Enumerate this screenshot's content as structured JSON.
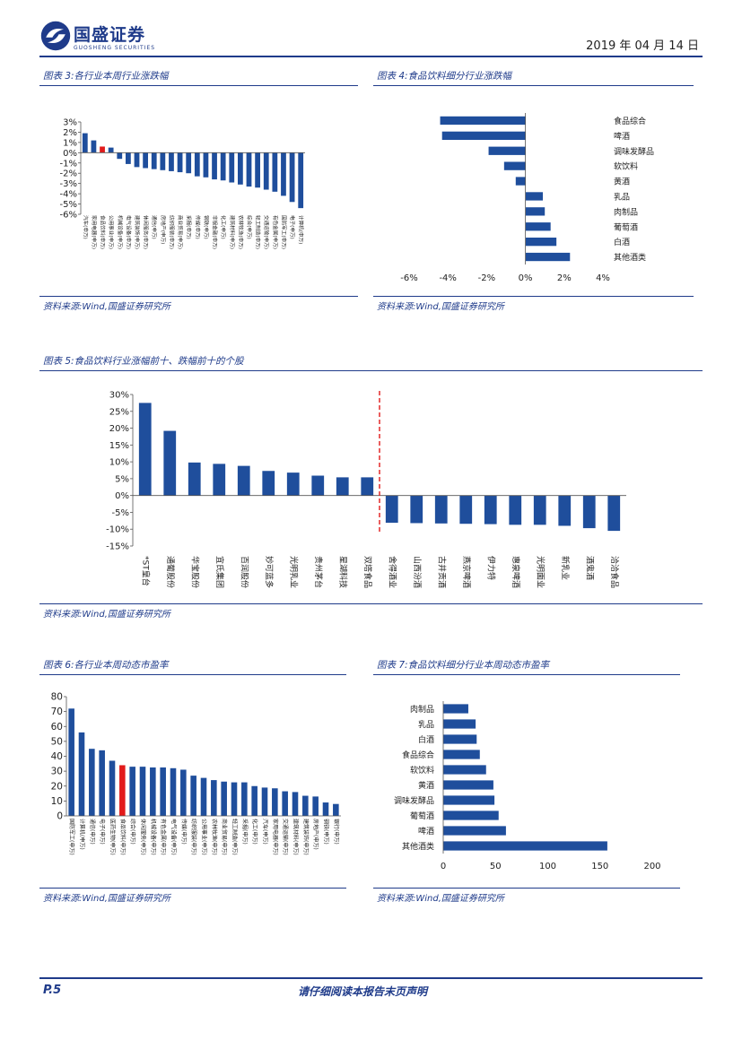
{
  "header": {
    "brand": "国盛证券",
    "brand_sub": "GUOSHENG SECURITIES",
    "date": "2019 年 04 月 14 日"
  },
  "figures": {
    "fig3": {
      "caption": "图表 3:各行业本周行业涨跌幅",
      "source": "资料来源:Wind,国盛证券研究所"
    },
    "fig4": {
      "caption": "图表 4:食品饮料细分行业涨跌幅",
      "source": "资料来源:Wind,国盛证券研究所"
    },
    "fig5": {
      "caption": "图表 5:食品饮料行业涨幅前十、跌幅前十的个股",
      "source": "资料来源:Wind,国盛证券研究所"
    },
    "fig6": {
      "caption": "图表 6:各行业本周动态市盈率",
      "source": "资料来源:Wind,国盛证券研究所"
    },
    "fig7": {
      "caption": "图表 7:食品饮料细分行业本周动态市盈率",
      "source": "资料来源:Wind,国盛证券研究所"
    }
  },
  "colors": {
    "bar": "#1f4e9c",
    "highlight": "#e21b1b",
    "brand": "#1f3b8a"
  },
  "footer": {
    "page": "P.5",
    "disclaimer": "请仔细阅读本报告末页声明"
  },
  "chart_data": [
    {
      "id": "fig3",
      "type": "bar",
      "title": "各行业本周行业涨跌幅",
      "ylim": [
        -6,
        3
      ],
      "yticks": [
        "3%",
        "2%",
        "1%",
        "0%",
        "-1%",
        "-2%",
        "-3%",
        "-4%",
        "-5%",
        "-6%"
      ],
      "ytick_values": [
        3,
        2,
        1,
        0,
        -1,
        -2,
        -3,
        -4,
        -5,
        -6
      ],
      "categories": [
        "汽车(申万)",
        "家用电器(申万)",
        "食品饮料(申万)",
        "公用事业(申万)",
        "机械设备(申万)",
        "电气设备(申万)",
        "建筑装饰(申万)",
        "休闲服务(申万)",
        "通信(申万)",
        "房地产(申万)",
        "纺织服装(申万)",
        "商业贸易(申万)",
        "采掘(申万)",
        "传媒(申万)",
        "钢铁(申万)",
        "非银金融(申万)",
        "化工(申万)",
        "建筑材料(申万)",
        "农林牧渔(申万)",
        "综合(申万)",
        "轻工制造(申万)",
        "交通运输(申万)",
        "有色金属(申万)",
        "国防军工(申万)",
        "电子(申万)",
        "计算机(申万)"
      ],
      "values": [
        1.9,
        1.2,
        0.6,
        0.5,
        -0.6,
        -1.1,
        -1.4,
        -1.5,
        -1.6,
        -1.7,
        -1.8,
        -1.9,
        -2.0,
        -2.3,
        -2.4,
        -2.6,
        -2.7,
        -2.9,
        -3.1,
        -3.3,
        -3.4,
        -3.6,
        -3.8,
        -4.2,
        -4.8,
        -5.4
      ],
      "highlight_index": 2
    },
    {
      "id": "fig4",
      "type": "bar",
      "orientation": "horizontal",
      "title": "食品饮料细分行业涨跌幅",
      "xlim": [
        -6,
        4
      ],
      "xticks": [
        "-6%",
        "-4%",
        "-2%",
        "0%",
        "2%",
        "4%"
      ],
      "xtick_values": [
        -6,
        -4,
        -2,
        0,
        2,
        4
      ],
      "categories": [
        "食品综合",
        "啤酒",
        "调味发酵品",
        "软饮料",
        "黄酒",
        "乳品",
        "肉制品",
        "葡萄酒",
        "白酒",
        "其他酒类"
      ],
      "values": [
        -4.4,
        -4.3,
        -1.9,
        -1.1,
        -0.5,
        0.9,
        1.0,
        1.3,
        1.6,
        2.3
      ]
    },
    {
      "id": "fig5",
      "type": "bar",
      "title": "食品饮料行业涨幅前十、跌幅前十的个股",
      "ylim": [
        -15,
        30
      ],
      "yticks": [
        "30%",
        "25%",
        "20%",
        "15%",
        "10%",
        "5%",
        "0%",
        "-5%",
        "-10%",
        "-15%"
      ],
      "ytick_values": [
        30,
        25,
        20,
        15,
        10,
        5,
        0,
        -5,
        -10,
        -15
      ],
      "categories": [
        "*ST皇台",
        "通葡股份",
        "华宝股份",
        "宜氏集团",
        "百润股份",
        "妙可蓝多",
        "光明乳业",
        "贵州茅台",
        "星湖科技",
        "双塔食品",
        "舍得酒业",
        "山西汾酒",
        "古井贡酒",
        "燕京啤酒",
        "伊力特",
        "惠泉啤酒",
        "光明面业",
        "新乳业",
        "酒鬼酒",
        "洽洽食品"
      ],
      "values": [
        27.5,
        19.2,
        9.8,
        9.4,
        8.8,
        7.3,
        6.8,
        5.9,
        5.4,
        5.4,
        -8.1,
        -8.2,
        -8.3,
        -8.4,
        -8.5,
        -8.7,
        -8.7,
        -9.0,
        -9.7,
        -10.5
      ]
    },
    {
      "id": "fig6",
      "type": "bar",
      "title": "各行业本周动态市盈率",
      "ylim": [
        0,
        80
      ],
      "yticks": [
        "80",
        "70",
        "60",
        "50",
        "40",
        "30",
        "20",
        "10",
        "0"
      ],
      "ytick_values": [
        80,
        70,
        60,
        50,
        40,
        30,
        20,
        10,
        0
      ],
      "categories": [
        "国防军工(申万)",
        "计算机(申万)",
        "通信(申万)",
        "电子(申万)",
        "医药生物(申万)",
        "食品饮料(申万)",
        "综合(申万)",
        "休闲服务(申万)",
        "机械设备(申万)",
        "有色金属(申万)",
        "电气设备(申万)",
        "传媒(申万)",
        "纺织服装(申万)",
        "公用事业(申万)",
        "农林牧渔(申万)",
        "商业贸易(申万)",
        "轻工制造(申万)",
        "采掘(申万)",
        "化工(申万)",
        "汽车(申万)",
        "家用电器(申万)",
        "交通运输(申万)",
        "建筑材料(申万)",
        "建筑装饰(申万)",
        "房地产(申万)",
        "钢铁(申万)",
        "银行(申万)"
      ],
      "values": [
        72,
        56,
        45,
        44,
        37,
        34,
        33,
        33,
        32.5,
        32.5,
        32,
        31,
        27,
        25.5,
        24,
        23,
        22.5,
        22.5,
        20,
        19,
        18.5,
        16.5,
        16,
        13.5,
        13,
        9,
        8
      ],
      "highlight_index": 5
    },
    {
      "id": "fig7",
      "type": "bar",
      "orientation": "horizontal",
      "title": "食品饮料细分行业本周动态市盈率",
      "xlim": [
        0,
        200
      ],
      "xticks": [
        "0",
        "50",
        "100",
        "150",
        "200"
      ],
      "xtick_values": [
        0,
        50,
        100,
        150,
        200
      ],
      "categories": [
        "肉制品",
        "乳品",
        "白酒",
        "食品综合",
        "软饮料",
        "黄酒",
        "调味发酵品",
        "葡萄酒",
        "啤酒",
        "其他酒类"
      ],
      "values": [
        24,
        31,
        32,
        35,
        41,
        48,
        49,
        53,
        60,
        157
      ]
    }
  ]
}
